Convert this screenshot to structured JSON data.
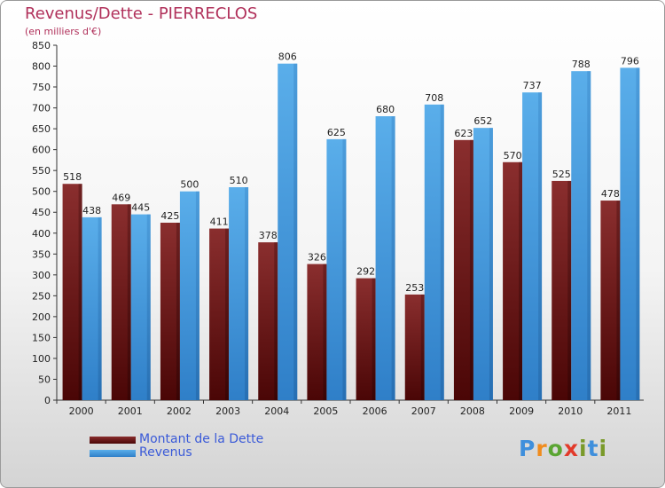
{
  "title": "Revenus/Dette - PIERRECLOS",
  "subtitle": "(en milliers d'€)",
  "logo_text": "Proxiti",
  "colors": {
    "debt": "#7a1c1c",
    "revenue": "#4fa3e0",
    "title": "#b0305a",
    "legend_text": "#3a5ad8"
  },
  "legend": [
    {
      "label": "Montant de la Dette",
      "color": "#6e1414"
    },
    {
      "label": "Revenus",
      "color": "#4fa3e0"
    }
  ],
  "chart_data": {
    "type": "bar",
    "title": "Revenus/Dette - PIERRECLOS",
    "subtitle": "(en milliers d'€)",
    "categories": [
      "2000",
      "2001",
      "2002",
      "2003",
      "2004",
      "2005",
      "2006",
      "2007",
      "2008",
      "2009",
      "2010",
      "2011"
    ],
    "series": [
      {
        "name": "Montant de la Dette",
        "values": [
          518,
          469,
          425,
          411,
          378,
          326,
          292,
          253,
          623,
          570,
          525,
          478
        ]
      },
      {
        "name": "Revenus",
        "values": [
          438,
          445,
          500,
          510,
          806,
          625,
          680,
          708,
          652,
          737,
          788,
          796
        ]
      }
    ],
    "ylim": [
      0,
      850
    ],
    "ytick_step": 50,
    "grid": false,
    "legend_position": "bottom-left"
  }
}
